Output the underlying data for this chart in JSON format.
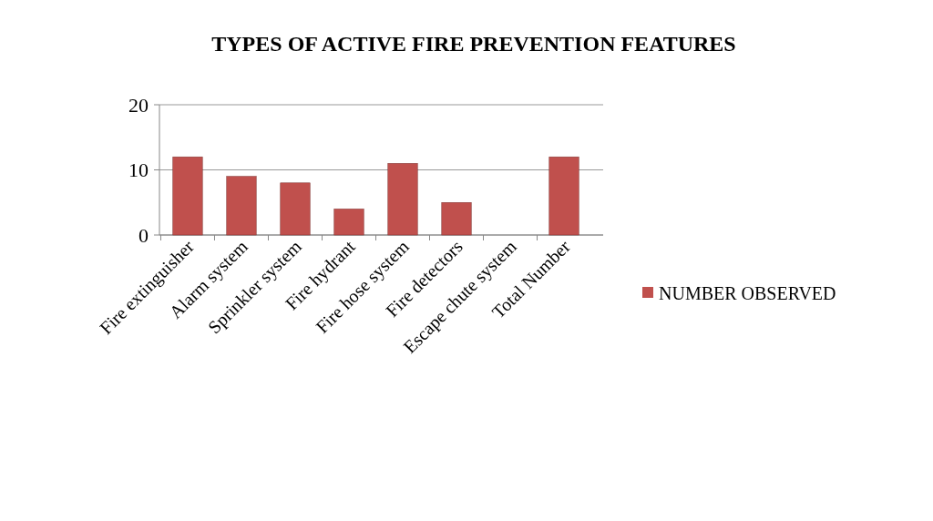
{
  "chart_data": {
    "type": "bar",
    "title": "TYPES OF ACTIVE  FIRE PREVENTION FEATURES",
    "categories": [
      "Fire extinguisher",
      "Alarm system",
      "Sprinkler system",
      "Fire hydrant",
      "Fire hose system",
      "Fire detectors",
      "Escape chute system",
      "Total Number"
    ],
    "series": [
      {
        "name": "NUMBER OBSERVED",
        "color": "#c0504d",
        "values": [
          12,
          9,
          8,
          4,
          11,
          5,
          0,
          12
        ]
      }
    ],
    "ylim": [
      0,
      20
    ],
    "yticks": [
      0,
      10,
      20
    ],
    "grid": "y",
    "legend": "right"
  }
}
